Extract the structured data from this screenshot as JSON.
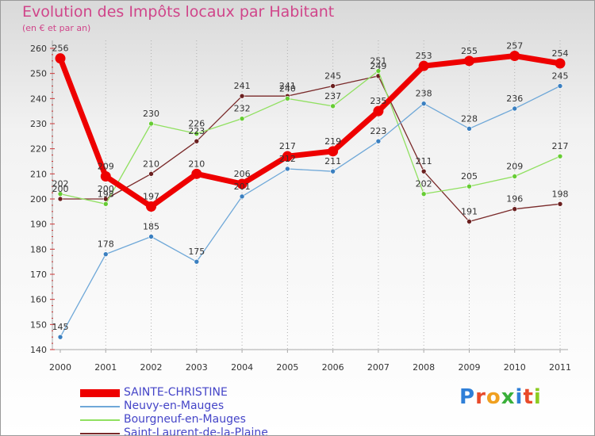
{
  "header": {
    "title": "Evolution des Impôts locaux par Habitant",
    "subtitle": "(en € et par an)"
  },
  "logo": {
    "text": "Proxiti"
  },
  "chart_data": {
    "type": "line",
    "title": "Evolution des Impôts locaux par Habitant",
    "subtitle": "(en € et par an)",
    "xlabel": "",
    "ylabel": "",
    "x": [
      "2000",
      "2001",
      "2002",
      "2003",
      "2004",
      "2005",
      "2006",
      "2007",
      "2008",
      "2009",
      "2010",
      "2011"
    ],
    "ylim": [
      140,
      260
    ],
    "yticks": [
      140,
      150,
      160,
      170,
      180,
      190,
      200,
      210,
      220,
      230,
      240,
      250,
      260
    ],
    "grid": "vertical dotted",
    "legend_position": "bottom-left",
    "series": [
      {
        "name": "SAINTE-CHRISTINE",
        "color": "#ee0000",
        "width": 7,
        "marker": 6.5,
        "values": [
          256,
          209,
          197,
          210,
          206,
          217,
          219,
          235,
          253,
          255,
          257,
          254
        ]
      },
      {
        "name": "Neuvy-en-Mauges",
        "color": "#6fa8d8",
        "width": 1.3,
        "marker": 3,
        "marker_color": "#3a7fc0",
        "values": [
          145,
          178,
          185,
          175,
          201,
          212,
          211,
          223,
          238,
          228,
          236,
          245
        ]
      },
      {
        "name": "Bourgneuf-en-Mauges",
        "color": "#90e060",
        "width": 1.3,
        "marker": 3,
        "marker_color": "#66cc33",
        "values": [
          202,
          198,
          230,
          226,
          232,
          240,
          237,
          251,
          202,
          205,
          209,
          217
        ]
      },
      {
        "name": "Saint-Laurent-de-la-Plaine",
        "color": "#7a2a2a",
        "width": 1.3,
        "marker": 3,
        "marker_color": "#6a1f1f",
        "values": [
          200,
          200,
          210,
          223,
          241,
          241,
          245,
          249,
          211,
          191,
          196,
          198
        ]
      }
    ]
  }
}
